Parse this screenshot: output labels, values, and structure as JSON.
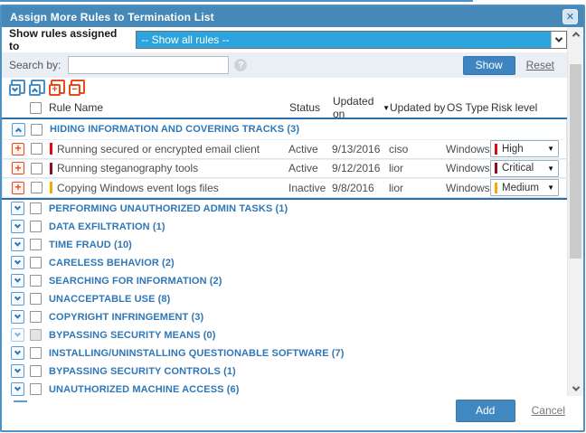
{
  "dialog": {
    "title": "Assign More Rules to Termination List",
    "close_glyph": "✕"
  },
  "filter": {
    "label": "Show rules assigned to",
    "selected_option": "-- Show all rules --"
  },
  "search": {
    "label": "Search by:",
    "value": "",
    "show_button": "Show",
    "reset_link": "Reset",
    "help_glyph": "?"
  },
  "toolbar": {
    "icons": [
      {
        "name": "expand-all-icon",
        "style": "blue",
        "glyph": "chevron-down"
      },
      {
        "name": "collapse-all-icon",
        "style": "blue",
        "glyph": "chevron-up"
      },
      {
        "name": "check-all-icon",
        "style": "red",
        "glyph": "plus"
      },
      {
        "name": "uncheck-all-icon",
        "style": "red",
        "glyph": "minus"
      }
    ]
  },
  "table": {
    "columns": [
      "Rule Name",
      "Status",
      "Updated on",
      "Updated by",
      "OS Type",
      "Risk level"
    ],
    "sort": {
      "column": "Updated on",
      "direction": "desc",
      "glyph": "▼"
    }
  },
  "categories": [
    {
      "label": "HIDING INFORMATION AND COVERING TRACKS (3)",
      "expanded": true,
      "disabled": false,
      "rules": [
        {
          "name": "Running secured or encrypted email client",
          "status": "Active",
          "updated_on": "9/13/2016",
          "updated_by": "ciso",
          "os_type": "Windows",
          "risk_level": "High",
          "risk_color": "#e30613"
        },
        {
          "name": "Running steganography tools",
          "status": "Active",
          "updated_on": "9/12/2016",
          "updated_by": "lior",
          "os_type": "Windows",
          "risk_level": "Critical",
          "risk_color": "#8e0e1c"
        },
        {
          "name": "Copying Windows event logs files",
          "status": "Inactive",
          "updated_on": "9/8/2016",
          "updated_by": "lior",
          "os_type": "Windows",
          "risk_level": "Medium",
          "risk_color": "#f8a805"
        }
      ]
    },
    {
      "label": "PERFORMING UNAUTHORIZED ADMIN TASKS (1)",
      "expanded": false,
      "disabled": false,
      "rules": []
    },
    {
      "label": "DATA EXFILTRATION (1)",
      "expanded": false,
      "disabled": false,
      "rules": []
    },
    {
      "label": "TIME FRAUD (10)",
      "expanded": false,
      "disabled": false,
      "rules": []
    },
    {
      "label": "CARELESS BEHAVIOR (2)",
      "expanded": false,
      "disabled": false,
      "rules": []
    },
    {
      "label": "SEARCHING FOR INFORMATION (2)",
      "expanded": false,
      "disabled": false,
      "rules": []
    },
    {
      "label": "UNACCEPTABLE USE (8)",
      "expanded": false,
      "disabled": false,
      "rules": []
    },
    {
      "label": "COPYRIGHT INFRINGEMENT (3)",
      "expanded": false,
      "disabled": false,
      "rules": []
    },
    {
      "label": "BYPASSING SECURITY MEANS (0)",
      "expanded": false,
      "disabled": true,
      "rules": []
    },
    {
      "label": "INSTALLING/UNINSTALLING QUESTIONABLE SOFTWARE (7)",
      "expanded": false,
      "disabled": false,
      "rules": []
    },
    {
      "label": "BYPASSING SECURITY CONTROLS (1)",
      "expanded": false,
      "disabled": false,
      "rules": []
    },
    {
      "label": "UNAUTHORIZED MACHINE ACCESS (6)",
      "expanded": false,
      "disabled": false,
      "rules": []
    }
  ],
  "footer": {
    "add_button": "Add",
    "cancel_link": "Cancel"
  },
  "colors": {
    "titlebar": "#4688b8",
    "dialog_border": "#4e92c4",
    "select_highlight": "#2ba3dc",
    "category_text": "#2f77b6",
    "accent_red": "#e8491d",
    "header_rule": "#2e6da4",
    "risk_high": "#e30613",
    "risk_critical": "#8e0e1c",
    "risk_medium": "#f8a805"
  }
}
